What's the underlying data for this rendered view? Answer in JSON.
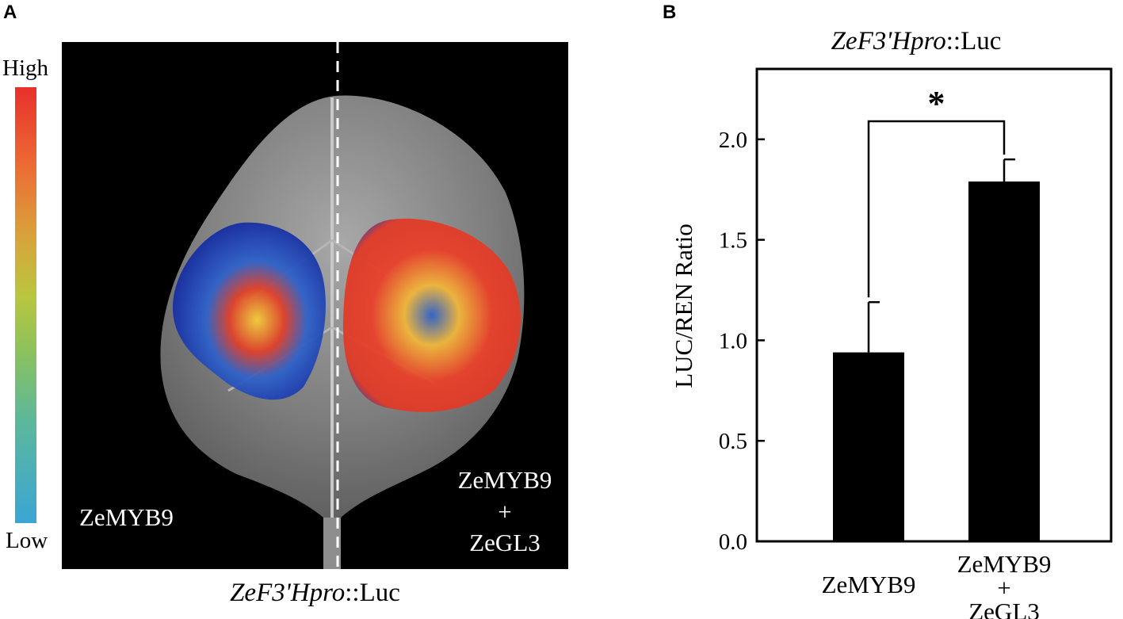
{
  "panel_a": {
    "letter": "A",
    "scale_high": "High",
    "scale_low": "Low",
    "left_label": "ZeMYB9",
    "right_label_lines": [
      "ZeMYB9",
      "+",
      "ZeGL3"
    ],
    "caption_italic": "ZeF3'Hpro",
    "caption_rest": "::Luc"
  },
  "panel_b": {
    "letter": "B"
  },
  "chart_data": {
    "type": "bar",
    "title_italic": "ZeF3'Hpro",
    "title_rest": "::Luc",
    "ylabel": "LUC/REN Ratio",
    "xlabel": "",
    "ylim": [
      0.0,
      2.35
    ],
    "yticks": [
      0.0,
      0.5,
      1.0,
      1.5,
      2.0
    ],
    "ytick_labels": [
      "0.0",
      "0.5",
      "1.0",
      "1.5",
      "2.0"
    ],
    "categories": [
      {
        "lines": [
          "ZeMYB9"
        ]
      },
      {
        "lines": [
          "ZeMYB9",
          "+",
          "ZeGL3"
        ]
      }
    ],
    "values": [
      0.94,
      1.79
    ],
    "errors": [
      0.25,
      0.11
    ],
    "significance": "*",
    "bar_color": "#000000"
  }
}
